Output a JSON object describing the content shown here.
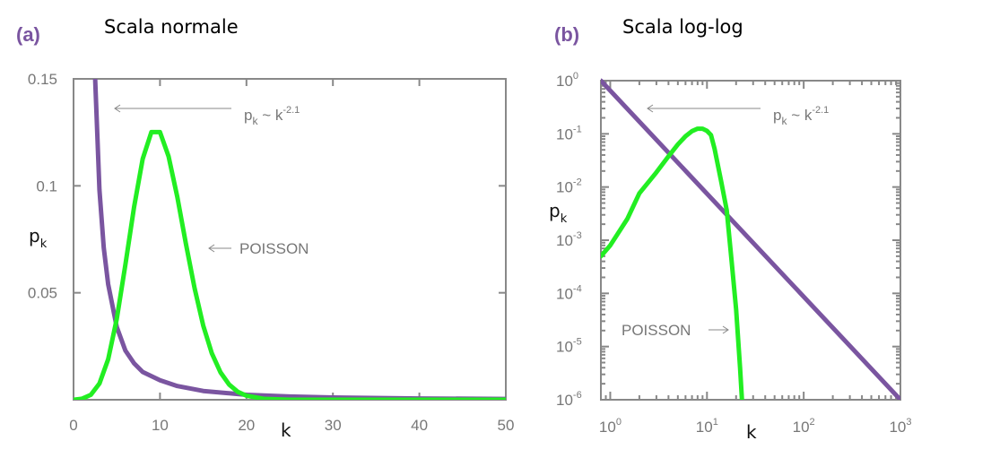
{
  "chart_data": [
    {
      "panel": "(a)",
      "title": "Scala normale",
      "type": "line",
      "xlabel": "k",
      "ylabel_main": "p",
      "ylabel_sub": "k",
      "xlim": [
        0,
        50
      ],
      "ylim": [
        0,
        0.15
      ],
      "xticks": [
        "0",
        "10",
        "20",
        "30",
        "40",
        "50"
      ],
      "yticks": [
        "0.05",
        "0.1",
        "0.15"
      ],
      "annotations": {
        "powerlaw_label": "p",
        "powerlaw_sub": "k",
        "powerlaw_mid": " ~ k",
        "powerlaw_exp": "-2.1",
        "poisson_label": "POISSON"
      },
      "series": [
        {
          "name": "power law",
          "color": "#7a55a0",
          "x": [
            2.5,
            3,
            3.5,
            4,
            5,
            6,
            7,
            8,
            10,
            12,
            15,
            20,
            25,
            30,
            40,
            50
          ],
          "values": [
            0.15,
            0.098,
            0.071,
            0.054,
            0.034,
            0.023,
            0.017,
            0.013,
            0.0091,
            0.0064,
            0.0041,
            0.0023,
            0.0015,
            0.00103,
            0.00057,
            0.00036
          ]
        },
        {
          "name": "POISSON",
          "color": "#22ee22",
          "x": [
            0,
            1,
            2,
            3,
            4,
            5,
            6,
            7,
            8,
            9,
            10,
            11,
            12,
            13,
            14,
            15,
            16,
            17,
            18,
            19,
            20,
            22,
            25,
            30,
            40,
            50
          ],
          "values": [
            0.0,
            0.0005,
            0.0023,
            0.0076,
            0.0189,
            0.0378,
            0.0631,
            0.0901,
            0.1126,
            0.1251,
            0.1251,
            0.1137,
            0.0948,
            0.0729,
            0.0521,
            0.0347,
            0.0217,
            0.0128,
            0.0071,
            0.0037,
            0.0019,
            0.0004,
            0.0,
            0.0,
            0.0,
            0.0
          ]
        }
      ]
    },
    {
      "panel": "(b)",
      "title": "Scala log-log",
      "type": "line",
      "xlabel": "k",
      "ylabel_main": "p",
      "ylabel_sub": "k",
      "scale": "log-log",
      "xlim": [
        0.8,
        1000
      ],
      "ylim": [
        1e-06,
        1
      ],
      "xticks": [
        {
          "base": "10",
          "exp": "0"
        },
        {
          "base": "10",
          "exp": "1"
        },
        {
          "base": "10",
          "exp": "2"
        },
        {
          "base": "10",
          "exp": "3"
        }
      ],
      "yticks": [
        {
          "base": "10",
          "exp": "0"
        },
        {
          "base": "10",
          "exp": "-1"
        },
        {
          "base": "10",
          "exp": "-2"
        },
        {
          "base": "10",
          "exp": "-3"
        },
        {
          "base": "10",
          "exp": "-4"
        },
        {
          "base": "10",
          "exp": "-5"
        },
        {
          "base": "10",
          "exp": "-6"
        }
      ],
      "annotations": {
        "powerlaw_label": "p",
        "powerlaw_sub": "k",
        "powerlaw_mid": " ~ k",
        "powerlaw_exp": "-2.1",
        "poisson_label": "POISSON"
      },
      "series": [
        {
          "name": "power law",
          "color": "#7a55a0",
          "x": [
            0.8,
            1000
          ],
          "values": [
            1.0,
            1e-06
          ]
        },
        {
          "name": "POISSON",
          "color": "#22ee22",
          "x": [
            0.8,
            1,
            1.5,
            2,
            3,
            4,
            5,
            6,
            7,
            8,
            9,
            10,
            11,
            12,
            14,
            16,
            18,
            20,
            22,
            23
          ],
          "values": [
            0.0005,
            0.0008,
            0.0025,
            0.0076,
            0.0189,
            0.0378,
            0.0631,
            0.0901,
            0.1126,
            0.1251,
            0.1251,
            0.1137,
            0.0948,
            0.0521,
            0.0128,
            0.0037,
            0.0004,
            5e-05,
            4e-06,
            1e-06
          ]
        }
      ]
    }
  ]
}
